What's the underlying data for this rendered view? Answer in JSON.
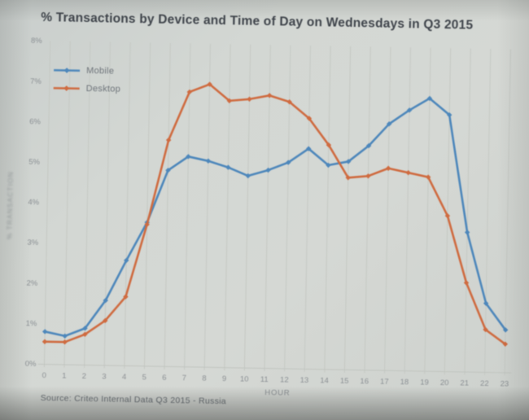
{
  "title": "% Transactions by Device and Time of Day on Wednesdays in Q3 2015",
  "source": "Source: Criteo Internal Data Q3 2015 - Russia",
  "chart_data": {
    "type": "line",
    "title": "% Transactions by Device and Time of Day on Wednesdays in Q3 2015",
    "xlabel": "HOUR",
    "ylabel": "% TRANSACTION",
    "x": [
      0,
      1,
      2,
      3,
      4,
      5,
      6,
      7,
      8,
      9,
      10,
      11,
      12,
      13,
      14,
      15,
      16,
      17,
      18,
      19,
      20,
      21,
      22,
      23
    ],
    "ylim": [
      0,
      8
    ],
    "yticks": [
      "0%",
      "1%",
      "2%",
      "3%",
      "4%",
      "5%",
      "6%",
      "7%",
      "8%"
    ],
    "grid": "vertical",
    "legend_position": "top-left-inside",
    "series": [
      {
        "name": "Mobile",
        "color": "#4d87bb",
        "values": [
          0.8,
          0.7,
          0.9,
          1.6,
          2.6,
          3.55,
          4.85,
          5.2,
          5.1,
          4.95,
          4.75,
          4.9,
          5.1,
          5.45,
          5.05,
          5.15,
          5.55,
          6.1,
          6.45,
          6.75,
          6.35,
          3.45,
          1.7,
          1.05
        ]
      },
      {
        "name": "Desktop",
        "color": "#cf6b40",
        "values": [
          0.55,
          0.55,
          0.75,
          1.1,
          1.7,
          3.5,
          5.6,
          6.8,
          7.0,
          6.6,
          6.65,
          6.75,
          6.6,
          6.2,
          5.55,
          4.75,
          4.8,
          5.0,
          4.9,
          4.8,
          3.85,
          2.2,
          1.05,
          0.7
        ]
      }
    ]
  }
}
